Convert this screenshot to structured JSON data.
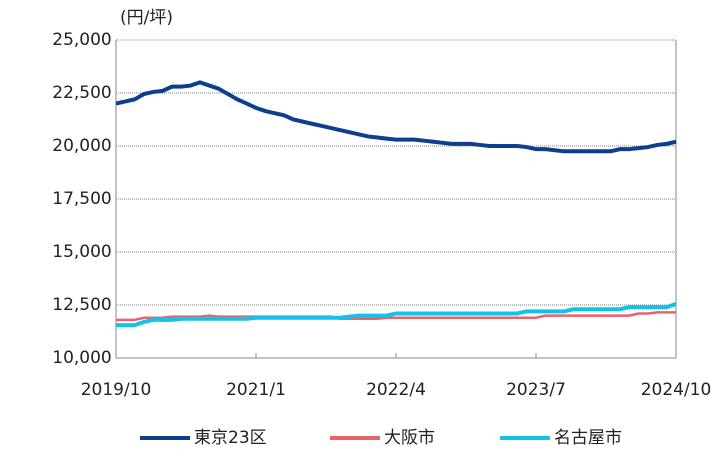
{
  "chart_data": {
    "type": "line",
    "y_unit": "(円/坪)",
    "categories": [
      "2019/10",
      "2019/11",
      "2019/12",
      "2020/1",
      "2020/2",
      "2020/3",
      "2020/4",
      "2020/5",
      "2020/6",
      "2020/7",
      "2020/8",
      "2020/9",
      "2020/10",
      "2020/11",
      "2020/12",
      "2021/1",
      "2021/2",
      "2021/3",
      "2021/4",
      "2021/5",
      "2021/6",
      "2021/7",
      "2021/8",
      "2021/9",
      "2021/10",
      "2021/11",
      "2021/12",
      "2022/1",
      "2022/2",
      "2022/3",
      "2022/4",
      "2022/5",
      "2022/6",
      "2022/7",
      "2022/8",
      "2022/9",
      "2022/10",
      "2022/11",
      "2022/12",
      "2023/1",
      "2023/2",
      "2023/3",
      "2023/4",
      "2023/5",
      "2023/6",
      "2023/7",
      "2023/8",
      "2023/9",
      "2023/10",
      "2023/11",
      "2023/12",
      "2024/1",
      "2024/2",
      "2024/3",
      "2024/4",
      "2024/5",
      "2024/6",
      "2024/7",
      "2024/8",
      "2024/9",
      "2024/10"
    ],
    "xtick_indices": [
      0,
      15,
      30,
      45,
      60
    ],
    "series": [
      {
        "name": "東京23区",
        "color": "#0d3f8f",
        "values": [
          22000,
          22100,
          22200,
          22450,
          22550,
          22600,
          22800,
          22800,
          22850,
          23000,
          22850,
          22700,
          22450,
          22200,
          22000,
          21800,
          21650,
          21550,
          21450,
          21250,
          21150,
          21050,
          20950,
          20850,
          20750,
          20650,
          20550,
          20450,
          20400,
          20350,
          20300,
          20300,
          20300,
          20250,
          20200,
          20150,
          20100,
          20100,
          20100,
          20050,
          20000,
          20000,
          20000,
          20000,
          19950,
          19850,
          19850,
          19800,
          19750,
          19750,
          19750,
          19750,
          19750,
          19750,
          19850,
          19850,
          19900,
          19950,
          20050,
          20100,
          20200
        ]
      },
      {
        "name": "大阪市",
        "color": "#e8636a",
        "values": [
          11800,
          11800,
          11800,
          11900,
          11900,
          11900,
          11950,
          11950,
          11950,
          11950,
          12000,
          11950,
          11950,
          11950,
          11950,
          11950,
          11950,
          11950,
          11950,
          11950,
          11950,
          11950,
          11950,
          11950,
          11850,
          11850,
          11850,
          11850,
          11850,
          11900,
          11900,
          11900,
          11900,
          11900,
          11900,
          11900,
          11900,
          11900,
          11900,
          11900,
          11900,
          11900,
          11900,
          11900,
          11900,
          11900,
          12000,
          12000,
          12000,
          12000,
          12000,
          12000,
          12000,
          12000,
          12000,
          12000,
          12100,
          12100,
          12150,
          12150,
          12150
        ]
      },
      {
        "name": "名古屋市",
        "color": "#13c2e8",
        "values": [
          11550,
          11550,
          11550,
          11700,
          11800,
          11800,
          11800,
          11850,
          11850,
          11850,
          11850,
          11850,
          11850,
          11850,
          11850,
          11900,
          11900,
          11900,
          11900,
          11900,
          11900,
          11900,
          11900,
          11900,
          11900,
          11950,
          12000,
          12000,
          12000,
          12000,
          12100,
          12100,
          12100,
          12100,
          12100,
          12100,
          12100,
          12100,
          12100,
          12100,
          12100,
          12100,
          12100,
          12100,
          12200,
          12200,
          12200,
          12200,
          12200,
          12300,
          12300,
          12300,
          12300,
          12300,
          12300,
          12400,
          12400,
          12400,
          12400,
          12400,
          12550
        ]
      }
    ],
    "ylim": [
      10000,
      25000
    ],
    "yticks": [
      {
        "value": 10000,
        "label": "10,000"
      },
      {
        "value": 12500,
        "label": "12,500"
      },
      {
        "value": 15000,
        "label": "15,000"
      },
      {
        "value": 17500,
        "label": "17,500"
      },
      {
        "value": 20000,
        "label": "20,000"
      },
      {
        "value": 22500,
        "label": "22,500"
      },
      {
        "value": 25000,
        "label": "25,000"
      }
    ],
    "grid": true,
    "legend": "bottom"
  }
}
